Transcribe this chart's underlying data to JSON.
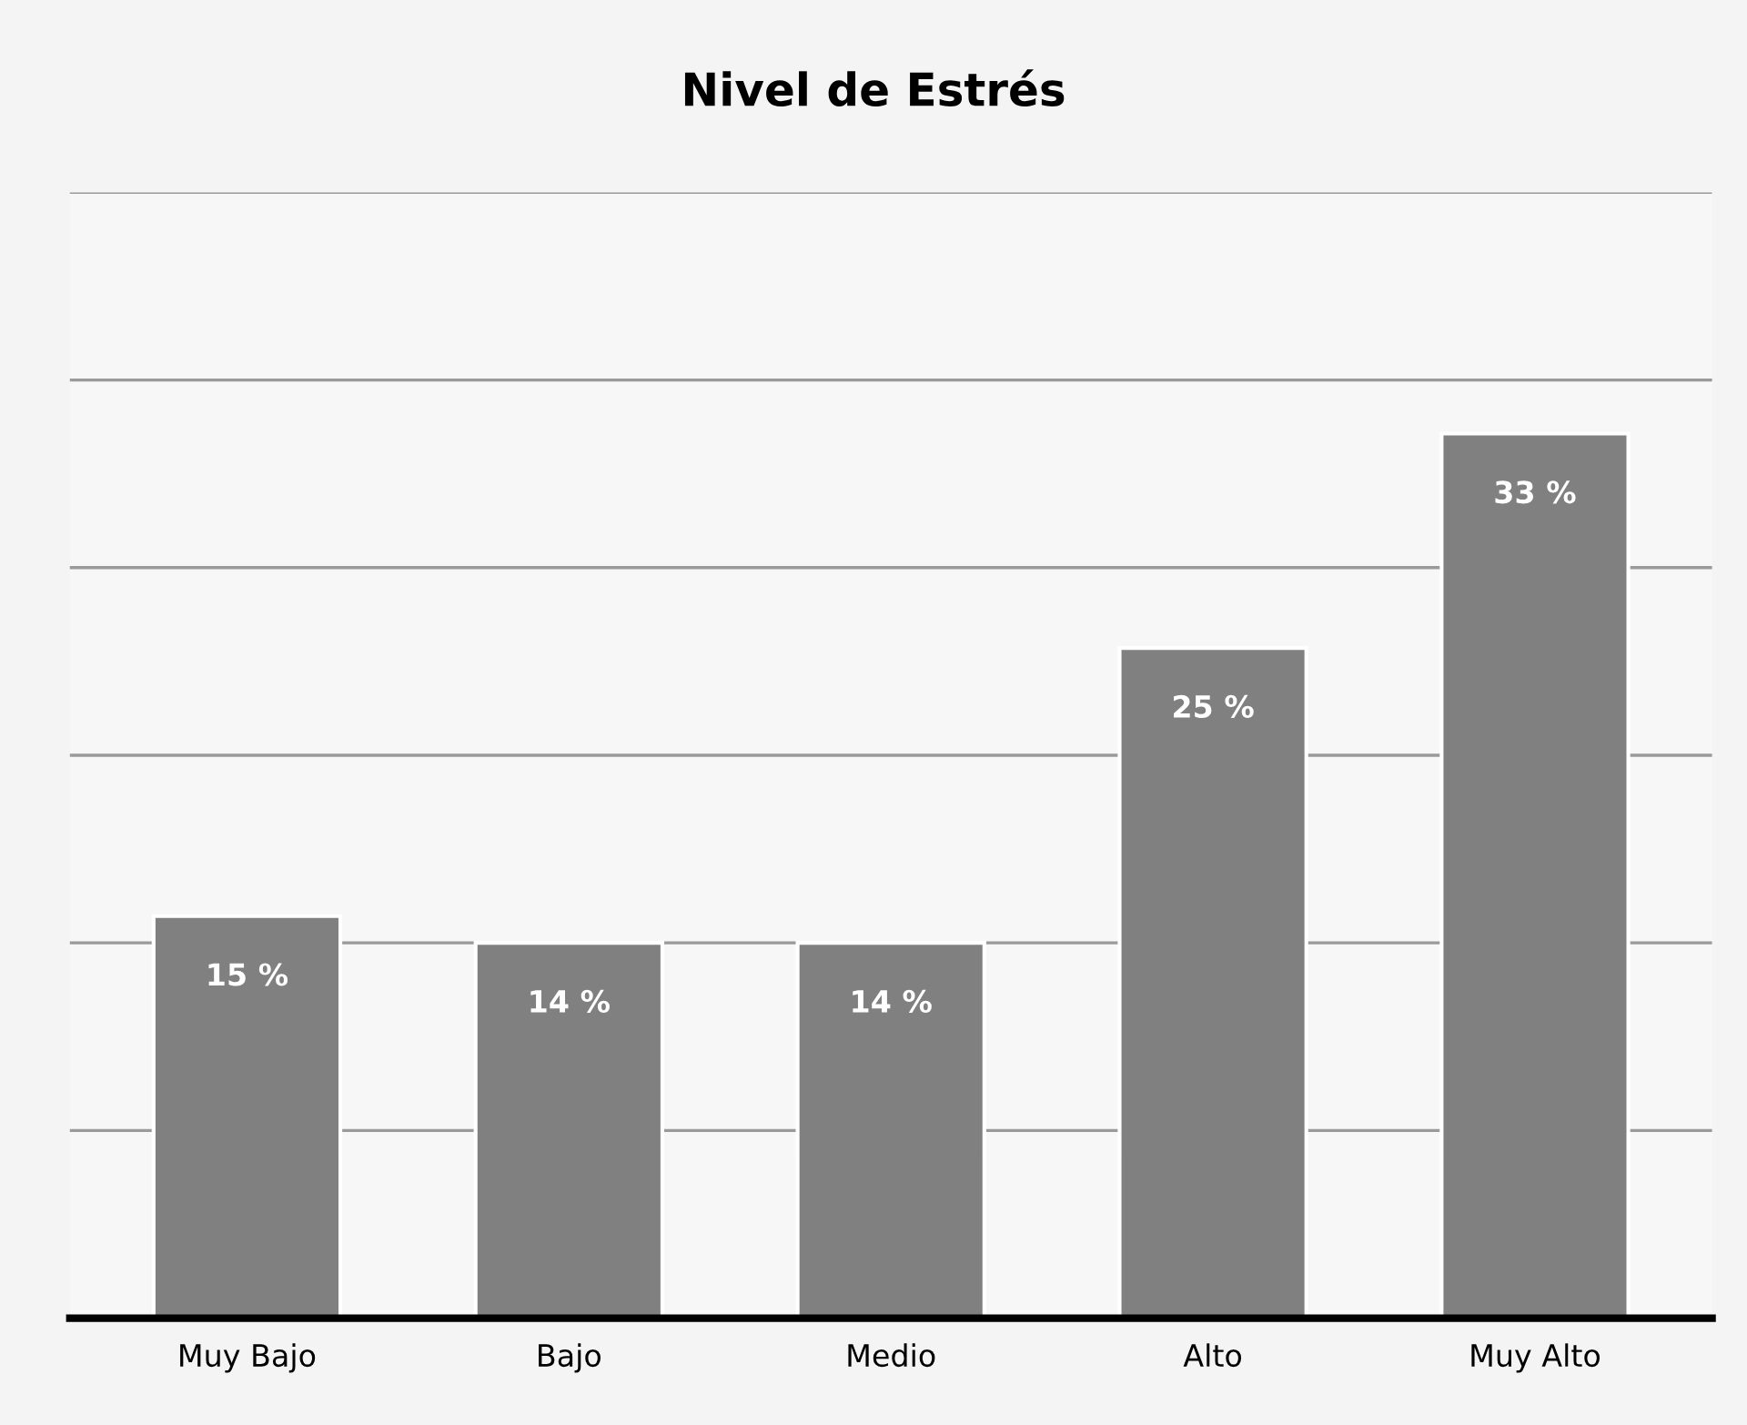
{
  "chart_data": {
    "type": "bar",
    "title": "Nivel de Estrés",
    "categories": [
      "Muy Bajo",
      "Bajo",
      "Medio",
      "Alto",
      "Muy Alto"
    ],
    "values": [
      15,
      14,
      14,
      25,
      33
    ],
    "value_labels": [
      "15 %",
      "14 %",
      "14 %",
      "25 %",
      "33 %"
    ],
    "color": "#808080",
    "ylim": [
      0,
      42
    ],
    "yticks": [
      {
        "value": 0,
        "label": null
      },
      {
        "value": 7,
        "label": null
      },
      {
        "value": 14,
        "label": null
      },
      {
        "value": 21,
        "label": null
      },
      {
        "value": 28,
        "label": null
      },
      {
        "value": 35,
        "label": null
      },
      {
        "value": 42,
        "label": null
      }
    ],
    "tick_labels": "x",
    "grid": "y"
  }
}
